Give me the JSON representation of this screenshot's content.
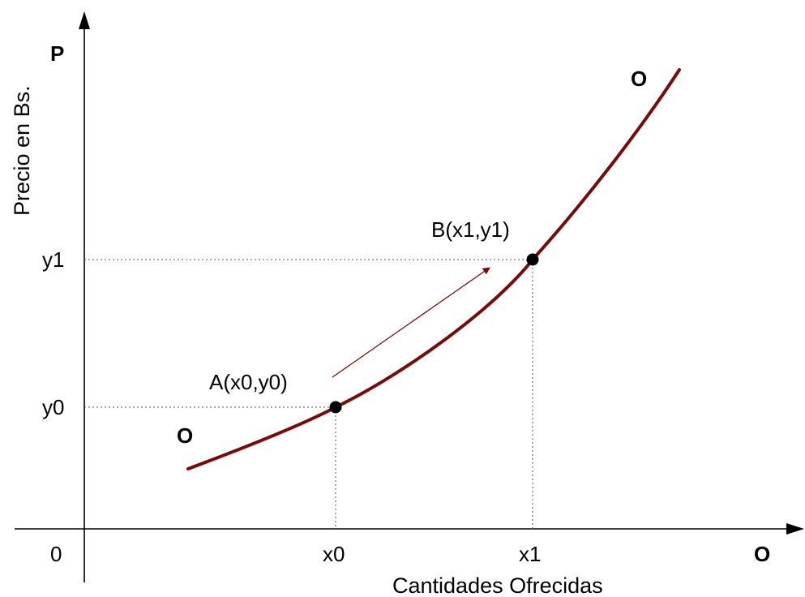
{
  "diagram": {
    "y_axis_label": "Precio en Bs.",
    "y_axis_symbol": "P",
    "x_axis_label": "Cantidades Ofrecidas",
    "x_axis_symbol": "O",
    "origin_label": "0",
    "curve_label_top": "O",
    "curve_label_bottom": "O",
    "x_ticks": [
      "x0",
      "x1"
    ],
    "y_ticks": [
      "y0",
      "y1"
    ],
    "points": [
      {
        "label": "A(x0,y0)"
      },
      {
        "label": "B(x1,y1)"
      }
    ],
    "colors": {
      "curve": "#7a0a0a",
      "axes": "#000000",
      "guides": "#555555",
      "arrow": "#7a0a0a"
    }
  }
}
